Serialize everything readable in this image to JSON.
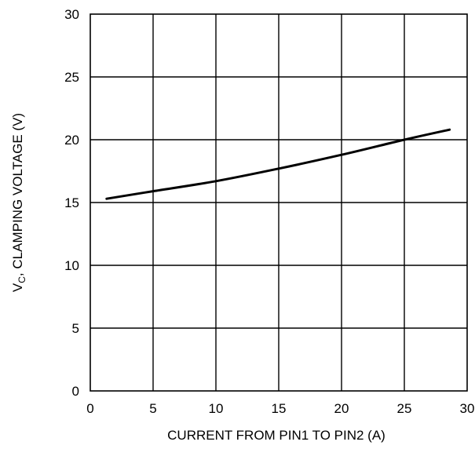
{
  "chart_data": {
    "type": "line",
    "title": "",
    "xlabel": "CURRENT FROM PIN1 TO PIN2 (A)",
    "ylabel": {
      "prefix": "V",
      "subscript": "C",
      "suffix": ", CLAMPING VOLTAGE (V)"
    },
    "xlim": [
      0,
      30
    ],
    "ylim": [
      0,
      30
    ],
    "xticks": [
      "0",
      "5",
      "10",
      "15",
      "20",
      "25",
      "30"
    ],
    "yticks": [
      "0",
      "5",
      "10",
      "15",
      "20",
      "25",
      "30"
    ],
    "grid": true,
    "legend": "none",
    "series": [
      {
        "x": [
          1.3,
          5,
          10,
          15,
          20,
          25,
          28.6
        ],
        "y": [
          15.3,
          15.9,
          16.7,
          17.7,
          18.8,
          20.0,
          20.8
        ]
      }
    ]
  },
  "colors": {
    "line": "#000000",
    "grid": "#000000",
    "background": "#ffffff"
  }
}
